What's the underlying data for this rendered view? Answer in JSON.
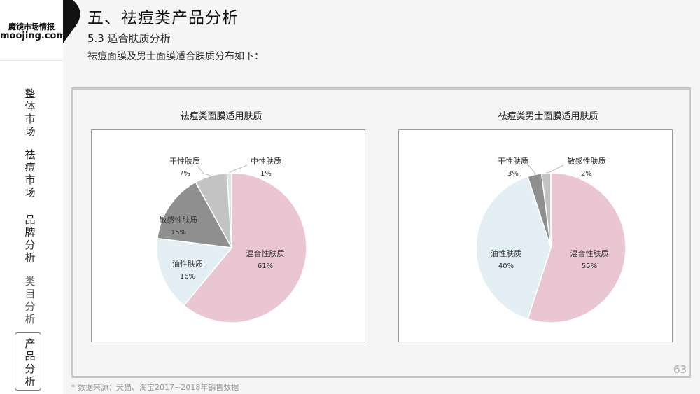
{
  "logo": {
    "line1": "魔镜市场情报",
    "line2": "moojing.com"
  },
  "sidebar": {
    "items": [
      {
        "label": "整体市场"
      },
      {
        "label": "祛痘市场"
      },
      {
        "label": "品牌分析"
      },
      {
        "label": "类目分析"
      },
      {
        "label": "产品分析"
      }
    ]
  },
  "header": {
    "title": "五、祛痘类产品分析",
    "subtitle": "5.3 适合肤质分析",
    "description": "祛痘面膜及男士面膜适合肤质分布如下："
  },
  "footer": {
    "page_number": "63",
    "source": "* 数据来源：天猫、淘宝2017~2018年销售数据"
  },
  "chart_data": [
    {
      "type": "pie",
      "title": "祛痘类面膜适用肤质",
      "slices": [
        {
          "label": "混合性肤质",
          "value": 61,
          "display": "61%",
          "color": "#e9c6d2"
        },
        {
          "label": "油性肤质",
          "value": 16,
          "display": "16%",
          "color": "#e4eef5"
        },
        {
          "label": "敏感性肤质",
          "value": 15,
          "display": "15%",
          "color": "#8f8f8f"
        },
        {
          "label": "干性肤质",
          "value": 7,
          "display": "7%",
          "color": "#c3c3c3"
        },
        {
          "label": "中性肤质",
          "value": 1,
          "display": "1%",
          "color": "#e3e3e3"
        }
      ]
    },
    {
      "type": "pie",
      "title": "祛痘类男士面膜适用肤质",
      "slices": [
        {
          "label": "混合性肤质",
          "value": 55,
          "display": "55%",
          "color": "#e9c6d2"
        },
        {
          "label": "油性肤质",
          "value": 40,
          "display": "40%",
          "color": "#e4eef5"
        },
        {
          "label": "干性肤质",
          "value": 3,
          "display": "3%",
          "color": "#8f8f8f"
        },
        {
          "label": "敏感性肤质",
          "value": 2,
          "display": "2%",
          "color": "#c3c3c3"
        }
      ]
    }
  ]
}
